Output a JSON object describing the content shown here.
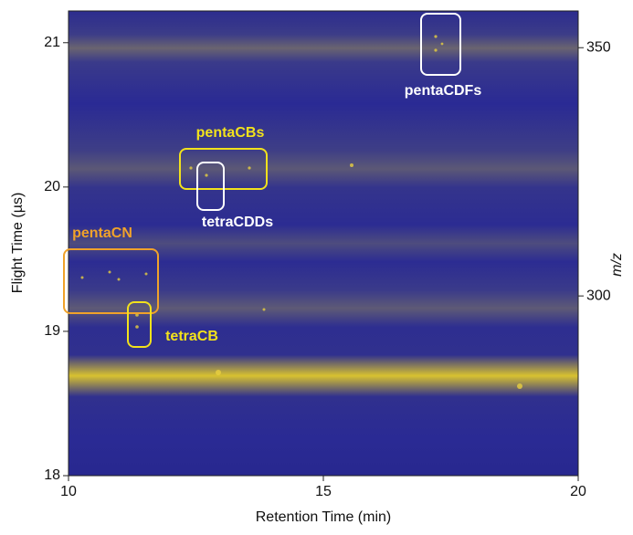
{
  "chart_data": {
    "type": "heatmap",
    "xlabel": "Retention Time (min)",
    "ylabel": "Flight Time (µs)",
    "y2label": "m/z",
    "xlim": [
      10,
      20
    ],
    "xticks": [
      10,
      15,
      20
    ],
    "ylim": [
      18,
      21.22
    ],
    "yticks": [
      18,
      19,
      20,
      21
    ],
    "y2lim": [
      263.8,
      357.4
    ],
    "y2ticks": [
      300,
      350
    ],
    "annotations": [
      {
        "text": "pentaCDFs",
        "color": "#ffffff"
      },
      {
        "text": "pentaCBs",
        "color": "#f2e21c"
      },
      {
        "text": "tetraCDDs",
        "color": "#ffffff"
      },
      {
        "text": "pentaCN",
        "color": "#f0a22a"
      },
      {
        "text": "tetraCB",
        "color": "#f2e21c"
      }
    ]
  }
}
